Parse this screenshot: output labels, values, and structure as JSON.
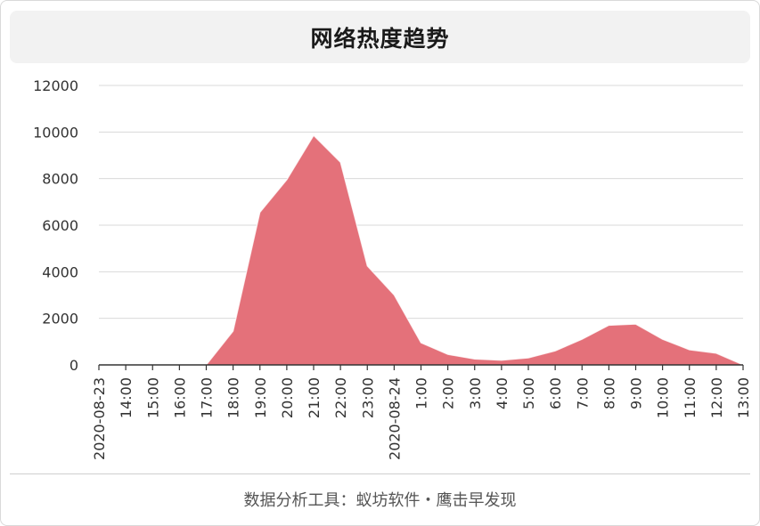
{
  "title": "网络热度趋势",
  "footer": "数据分析工具：蚁坊软件・鹰击早发现",
  "colors": {
    "area": "#e4717a",
    "line": "#ffffff",
    "grid": "#d9d9d9",
    "axis": "#333333"
  },
  "chart_data": {
    "type": "area",
    "title": "网络热度趋势",
    "x": [
      "2020-08-23",
      "14:00",
      "15:00",
      "16:00",
      "17:00",
      "18:00",
      "19:00",
      "20:00",
      "21:00",
      "22:00",
      "23:00",
      "2020-08-24",
      "1:00",
      "2:00",
      "3:00",
      "4:00",
      "5:00",
      "6:00",
      "7:00",
      "8:00",
      "9:00",
      "10:00",
      "11:00",
      "12:00",
      "13:00"
    ],
    "values": [
      0,
      0,
      0,
      0,
      0,
      1450,
      6550,
      7950,
      9850,
      8700,
      4250,
      3000,
      950,
      450,
      250,
      200,
      300,
      600,
      1100,
      1700,
      1750,
      1100,
      650,
      500,
      0
    ],
    "y_ticks": [
      0,
      2000,
      4000,
      6000,
      8000,
      10000,
      12000
    ],
    "ylim": [
      0,
      12000
    ],
    "grid": true,
    "legend": "none"
  }
}
